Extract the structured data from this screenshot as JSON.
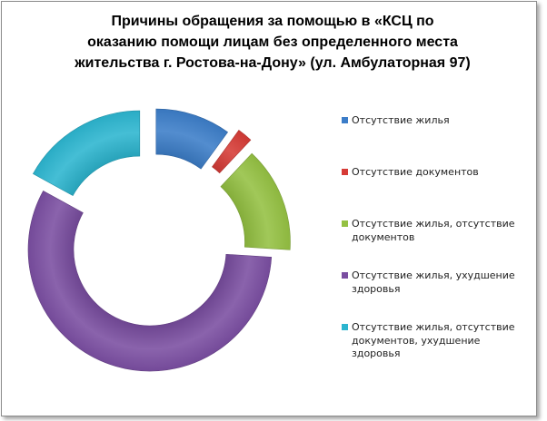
{
  "chart_data": {
    "type": "pie",
    "variant": "exploded-doughnut",
    "title": [
      "Причины обращения за  помощью в «КСЦ по",
      "оказанию помощи лицам без определенного места",
      "жительства г. Ростова-на-Дону» (ул. Амбулаторная 97)"
    ],
    "categories": [
      "Отсутствие жилья",
      "Отсутствие документов",
      "Отсутствие жилья,  отсутствие документов",
      "Отсутствие жилья, ухудшение здоровья",
      "Отсутствие жилья, отсутствие документов, ухудшение здоровья"
    ],
    "values": [
      10,
      2,
      14,
      57,
      17
    ],
    "unit": "%",
    "legend_position": "right",
    "colors": [
      "#3c7dc8",
      "#d63b36",
      "#94c142",
      "#7a4ea1",
      "#2cb5cf"
    ]
  },
  "legend": {
    "items": [
      {
        "lines": [
          "Отсутствие жилья"
        ]
      },
      {
        "lines": [
          "Отсутствие документов"
        ]
      },
      {
        "lines": [
          "Отсутствие жилья,  отсутствие",
          "документов"
        ]
      },
      {
        "lines": [
          "Отсутствие жилья, ухудшение",
          "здоровья"
        ]
      },
      {
        "lines": [
          "Отсутствие жилья, отсутствие",
          "документов, ухудшение",
          "здоровья"
        ]
      }
    ]
  }
}
